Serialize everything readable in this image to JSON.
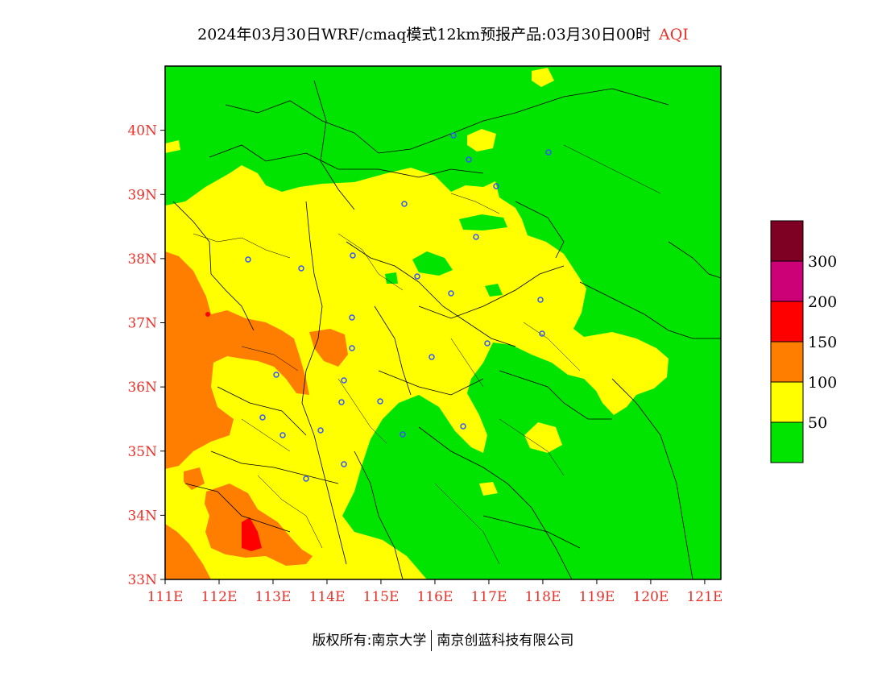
{
  "header": {
    "title": "2024年03月30日WRF/cmaq模式12km预报产品:03月30日00时",
    "product": "AQI"
  },
  "map": {
    "lat_labels": [
      "40N",
      "39N",
      "38N",
      "37N",
      "36N",
      "35N",
      "34N",
      "33N"
    ],
    "lon_labels": [
      "111E",
      "112E",
      "113E",
      "114E",
      "115E",
      "116E",
      "117E",
      "118E",
      "119E",
      "120E",
      "121E"
    ],
    "lon_range": [
      111,
      121.3
    ],
    "lat_range": [
      33,
      41
    ],
    "label_color": "#e8312a"
  },
  "legend": {
    "levels": [
      {
        "label": "",
        "color": "#7e0023"
      },
      {
        "label": "300",
        "color": "#cc0077"
      },
      {
        "label": "200",
        "color": "#ff0000"
      },
      {
        "label": "150",
        "color": "#ff7e00"
      },
      {
        "label": "100",
        "color": "#ffff00"
      },
      {
        "label": "50",
        "color": "#00e400"
      }
    ]
  },
  "footer": {
    "copyright": "版权所有:南京大学",
    "company": "南京创蓝科技有限公司"
  }
}
